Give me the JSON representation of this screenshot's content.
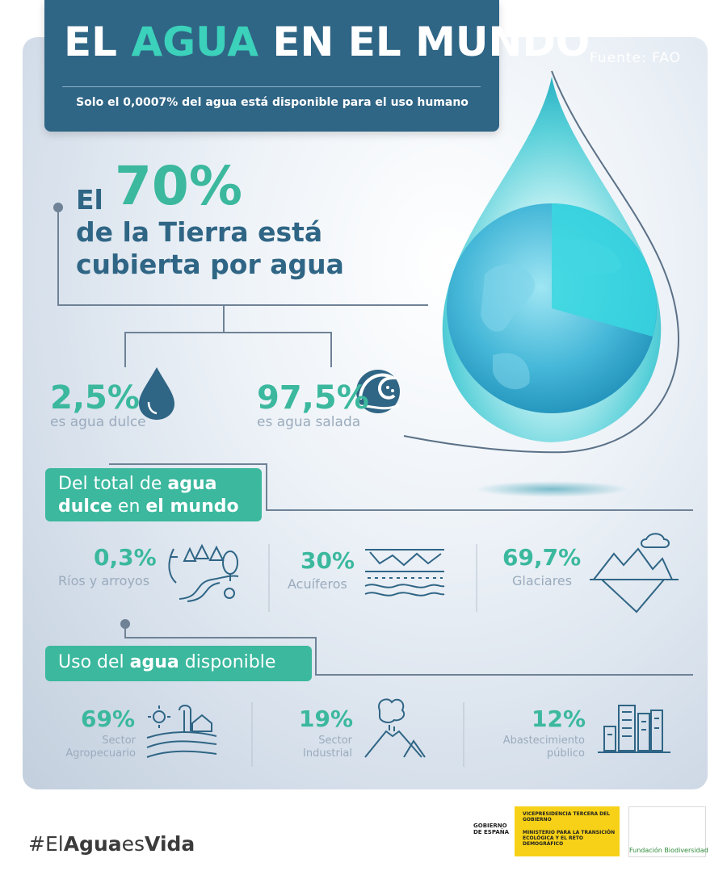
{
  "header": {
    "title_part1": "EL ",
    "title_accent": "AGUA",
    "title_part2": " EN EL MUNDO",
    "subtitle": "Solo el 0,0007% del agua está disponible para el uso humano"
  },
  "source": "Fuente: FAO",
  "earth_coverage": {
    "prefix": "El",
    "value": "70%",
    "line2": "de  la Tierra está",
    "line3": "cubierta por agua"
  },
  "water_types": [
    {
      "value": "2,5%",
      "label": "es agua dulce",
      "icon": "water-drop-icon"
    },
    {
      "value": "97,5%",
      "label": "es agua salada",
      "icon": "wave-icon"
    }
  ],
  "fresh_water": {
    "pill_part1": "Del total de ",
    "pill_bold1": "agua",
    "pill_bold2": "dulce",
    "pill_part2": " en ",
    "pill_bold3": "el mundo",
    "items": [
      {
        "value": "0,3%",
        "label": "Ríos y arroyos",
        "icon": "river-trees-icon"
      },
      {
        "value": "30%",
        "label": "Acuíferos",
        "icon": "aquifer-icon"
      },
      {
        "value": "69,7%",
        "label": "Glaciares",
        "icon": "glacier-icon"
      }
    ]
  },
  "water_use": {
    "pill_part1": "Uso del ",
    "pill_bold": "agua",
    "pill_part2": " disponible",
    "items": [
      {
        "value": "69%",
        "label_l1": "Sector",
        "label_l2": "Agropecuario",
        "icon": "farm-icon"
      },
      {
        "value": "19%",
        "label_l1": "Sector",
        "label_l2": "Industrial",
        "icon": "factory-volcano-icon"
      },
      {
        "value": "12%",
        "label_l1": "Abastecimiento",
        "label_l2": "público",
        "icon": "city-buildings-icon"
      }
    ]
  },
  "hashtag": {
    "p1": "#El",
    "p2": "Agua",
    "p3": "es",
    "p4": "Vida"
  },
  "footer": {
    "gov_label": "GOBIERNO DE ESPAÑA",
    "ministry_l1": "VICEPRESIDENCIA TERCERA DEL GOBIERNO",
    "ministry_l2": "MINISTERIO PARA LA TRANSICIÓN ECOLÓGICA Y EL RETO DEMOGRÁFICO",
    "foundation": "Fundación Biodiversidad"
  },
  "colors": {
    "navy": "#2f6585",
    "teal": "#3bb89e",
    "grey": "#9aabbd"
  }
}
